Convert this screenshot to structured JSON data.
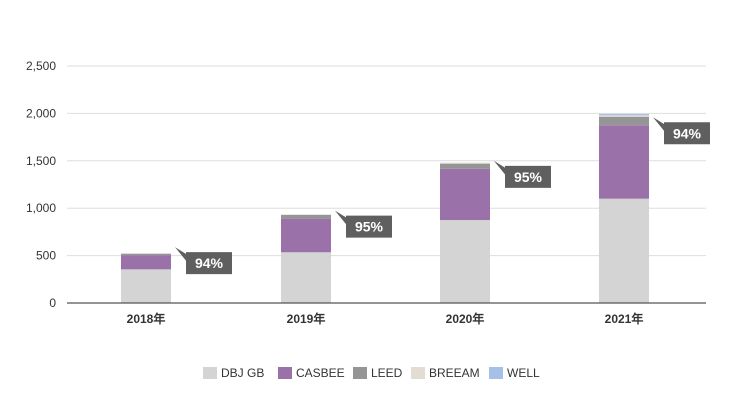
{
  "chart_data": {
    "type": "bar",
    "stacked": true,
    "title": "",
    "xlabel": "",
    "ylabel": "",
    "ylim": [
      0,
      2500
    ],
    "yticks": [
      0,
      500,
      1000,
      1500,
      2000,
      2500
    ],
    "ytick_labels": [
      "0",
      "500",
      "1,000",
      "1,500",
      "2,000",
      "2,500"
    ],
    "categories": [
      "2018年",
      "2019年",
      "2020年",
      "2021年"
    ],
    "series": [
      {
        "name": "DBJ GB",
        "color": "#d4d4d4",
        "values": [
          355,
          535,
          875,
          1100
        ]
      },
      {
        "name": "CASBEE",
        "color": "#9b71a9",
        "values": [
          150,
          355,
          540,
          775
        ]
      },
      {
        "name": "LEED",
        "color": "#959595",
        "values": [
          15,
          40,
          55,
          90
        ]
      },
      {
        "name": "BREEAM",
        "color": "#e3dcd3",
        "values": [
          5,
          5,
          10,
          15
        ]
      },
      {
        "name": "WELL",
        "color": "#a7c0e6",
        "values": [
          0,
          0,
          0,
          15
        ]
      }
    ],
    "annotations": [
      "94%",
      "95%",
      "95%",
      "94%"
    ],
    "grid": true,
    "legend": "bottom-center"
  }
}
